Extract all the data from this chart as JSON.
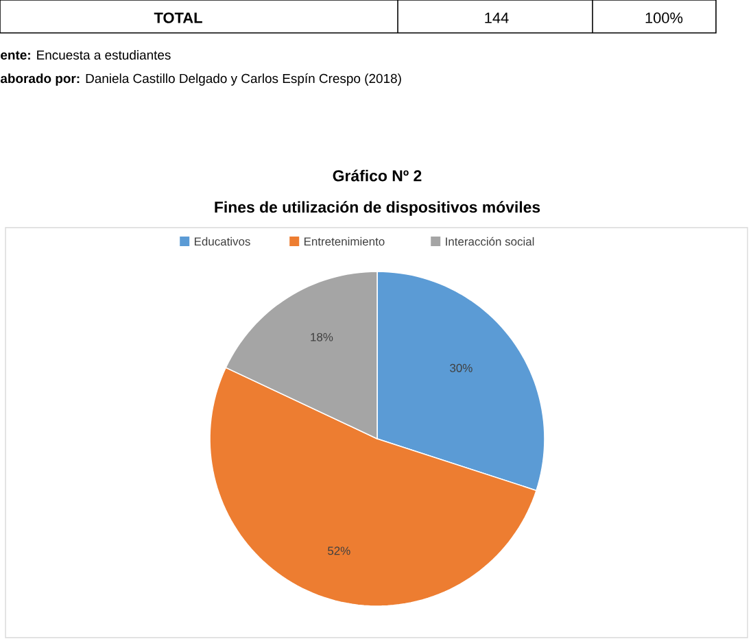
{
  "chart_data": {
    "type": "pie",
    "title": "Gráfico Nº  2",
    "subtitle": "Fines de utilización de dispositivos móviles",
    "categories": [
      "Educativos",
      "Entretenimiento",
      "Interacción social"
    ],
    "values": [
      30,
      52,
      18
    ],
    "value_labels": [
      "30%",
      "52%",
      "18%"
    ],
    "colors": [
      "#5b9bd5",
      "#ed7d31",
      "#a5a5a5"
    ],
    "legend": "top",
    "annotations": [
      "TOTAL",
      "144",
      "100%",
      "**ente:** Encuesta a estudiantes",
      "**aborado por:** Daniela Castillo Delgado y Carlos Espín Crespo (2018)"
    ]
  }
}
